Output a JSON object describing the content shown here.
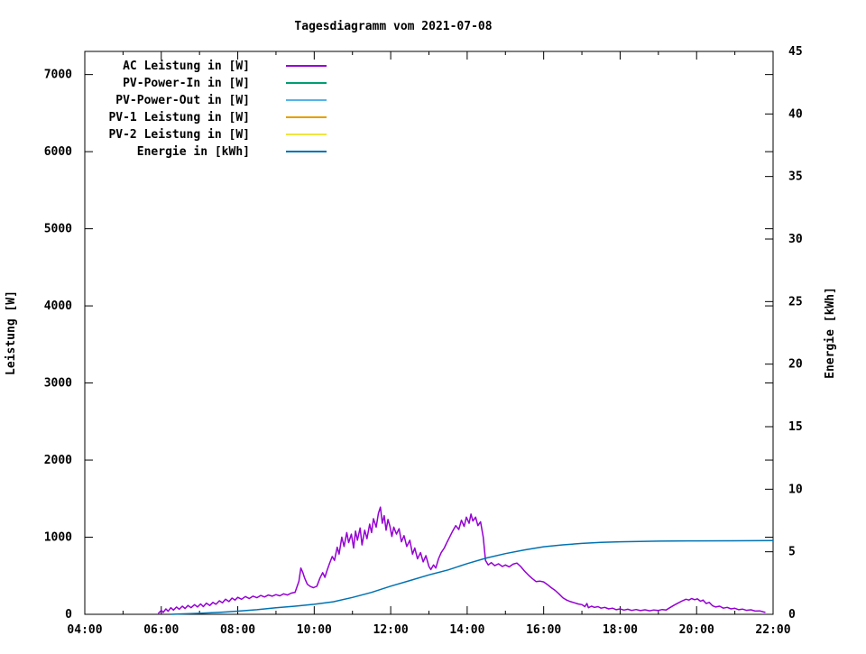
{
  "title": "Tagesdiagramm vom 2021-07-08",
  "colors": {
    "background": "#ffffff",
    "axis": "#000000",
    "ac": "#9400d3",
    "pv_in": "#009e73",
    "pv_out": "#56b4e9",
    "pv1": "#e69f00",
    "pv2": "#f0e442",
    "energie": "#0072b2"
  },
  "chart_data": {
    "type": "line",
    "title": "Tagesdiagramm vom 2021-07-08",
    "xlabel": "",
    "grid": false,
    "legend_position": "top-left-inside",
    "x_axis": {
      "range_hours": [
        4,
        22
      ],
      "major_ticks": [
        {
          "h": 4,
          "label": "04:00"
        },
        {
          "h": 6,
          "label": "06:00"
        },
        {
          "h": 8,
          "label": "08:00"
        },
        {
          "h": 10,
          "label": "10:00"
        },
        {
          "h": 12,
          "label": "12:00"
        },
        {
          "h": 14,
          "label": "14:00"
        },
        {
          "h": 16,
          "label": "16:00"
        },
        {
          "h": 18,
          "label": "18:00"
        },
        {
          "h": 20,
          "label": "20:00"
        },
        {
          "h": 22,
          "label": "22:00"
        }
      ],
      "minor_tick_hours": [
        5,
        7,
        9,
        11,
        13,
        15,
        17,
        19,
        21
      ]
    },
    "y_axis_left": {
      "label": "Leistung [W]",
      "lim": [
        0,
        7300
      ],
      "ticks": [
        0,
        1000,
        2000,
        3000,
        4000,
        5000,
        6000,
        7000
      ]
    },
    "y_axis_right": {
      "label": "Energie [kWh]",
      "lim": [
        0,
        45
      ],
      "ticks": [
        0,
        5,
        10,
        15,
        20,
        25,
        30,
        35,
        40,
        45
      ]
    },
    "series": [
      {
        "name": "AC Leistung in [W]",
        "color": "#9400d3",
        "axis": "left",
        "points": [
          [
            5.92,
            10
          ],
          [
            6.0,
            50
          ],
          [
            6.05,
            25
          ],
          [
            6.12,
            70
          ],
          [
            6.18,
            40
          ],
          [
            6.25,
            85
          ],
          [
            6.32,
            55
          ],
          [
            6.4,
            95
          ],
          [
            6.47,
            65
          ],
          [
            6.55,
            105
          ],
          [
            6.62,
            75
          ],
          [
            6.7,
            115
          ],
          [
            6.78,
            85
          ],
          [
            6.87,
            125
          ],
          [
            6.95,
            95
          ],
          [
            7.03,
            135
          ],
          [
            7.1,
            100
          ],
          [
            7.18,
            145
          ],
          [
            7.27,
            115
          ],
          [
            7.35,
            155
          ],
          [
            7.43,
            130
          ],
          [
            7.52,
            175
          ],
          [
            7.6,
            150
          ],
          [
            7.68,
            195
          ],
          [
            7.77,
            165
          ],
          [
            7.85,
            210
          ],
          [
            7.93,
            185
          ],
          [
            8.0,
            220
          ],
          [
            8.1,
            195
          ],
          [
            8.2,
            230
          ],
          [
            8.3,
            205
          ],
          [
            8.4,
            235
          ],
          [
            8.5,
            215
          ],
          [
            8.6,
            245
          ],
          [
            8.7,
            225
          ],
          [
            8.8,
            250
          ],
          [
            8.9,
            235
          ],
          [
            9.0,
            255
          ],
          [
            9.1,
            240
          ],
          [
            9.2,
            265
          ],
          [
            9.3,
            250
          ],
          [
            9.4,
            275
          ],
          [
            9.5,
            285
          ],
          [
            9.6,
            430
          ],
          [
            9.65,
            600
          ],
          [
            9.7,
            545
          ],
          [
            9.75,
            470
          ],
          [
            9.82,
            390
          ],
          [
            9.9,
            360
          ],
          [
            9.98,
            345
          ],
          [
            10.07,
            365
          ],
          [
            10.15,
            470
          ],
          [
            10.22,
            540
          ],
          [
            10.28,
            480
          ],
          [
            10.33,
            560
          ],
          [
            10.4,
            660
          ],
          [
            10.47,
            750
          ],
          [
            10.53,
            700
          ],
          [
            10.6,
            870
          ],
          [
            10.65,
            780
          ],
          [
            10.72,
            1000
          ],
          [
            10.78,
            880
          ],
          [
            10.85,
            1060
          ],
          [
            10.9,
            930
          ],
          [
            10.97,
            1040
          ],
          [
            11.03,
            860
          ],
          [
            11.08,
            1080
          ],
          [
            11.13,
            960
          ],
          [
            11.2,
            1120
          ],
          [
            11.25,
            900
          ],
          [
            11.32,
            1090
          ],
          [
            11.38,
            980
          ],
          [
            11.45,
            1170
          ],
          [
            11.5,
            1060
          ],
          [
            11.55,
            1240
          ],
          [
            11.62,
            1130
          ],
          [
            11.68,
            1310
          ],
          [
            11.73,
            1390
          ],
          [
            11.78,
            1180
          ],
          [
            11.83,
            1280
          ],
          [
            11.88,
            1090
          ],
          [
            11.93,
            1230
          ],
          [
            11.98,
            1140
          ],
          [
            12.03,
            1010
          ],
          [
            12.08,
            1130
          ],
          [
            12.15,
            1040
          ],
          [
            12.22,
            1110
          ],
          [
            12.28,
            940
          ],
          [
            12.35,
            1020
          ],
          [
            12.42,
            880
          ],
          [
            12.5,
            960
          ],
          [
            12.57,
            780
          ],
          [
            12.63,
            860
          ],
          [
            12.7,
            720
          ],
          [
            12.78,
            800
          ],
          [
            12.85,
            680
          ],
          [
            12.92,
            760
          ],
          [
            13.0,
            620
          ],
          [
            13.05,
            580
          ],
          [
            13.12,
            640
          ],
          [
            13.18,
            600
          ],
          [
            13.25,
            720
          ],
          [
            13.32,
            800
          ],
          [
            13.4,
            860
          ],
          [
            13.48,
            940
          ],
          [
            13.55,
            1010
          ],
          [
            13.62,
            1080
          ],
          [
            13.7,
            1150
          ],
          [
            13.78,
            1100
          ],
          [
            13.85,
            1220
          ],
          [
            13.92,
            1140
          ],
          [
            13.98,
            1260
          ],
          [
            14.05,
            1180
          ],
          [
            14.1,
            1300
          ],
          [
            14.15,
            1210
          ],
          [
            14.22,
            1260
          ],
          [
            14.28,
            1150
          ],
          [
            14.35,
            1200
          ],
          [
            14.42,
            1000
          ],
          [
            14.48,
            700
          ],
          [
            14.55,
            640
          ],
          [
            14.63,
            670
          ],
          [
            14.72,
            630
          ],
          [
            14.82,
            655
          ],
          [
            14.92,
            620
          ],
          [
            15.0,
            640
          ],
          [
            15.1,
            615
          ],
          [
            15.2,
            650
          ],
          [
            15.3,
            665
          ],
          [
            15.4,
            620
          ],
          [
            15.5,
            560
          ],
          [
            15.6,
            510
          ],
          [
            15.7,
            465
          ],
          [
            15.8,
            425
          ],
          [
            15.9,
            430
          ],
          [
            16.0,
            420
          ],
          [
            16.1,
            385
          ],
          [
            16.2,
            345
          ],
          [
            16.3,
            310
          ],
          [
            16.4,
            265
          ],
          [
            16.5,
            215
          ],
          [
            16.6,
            185
          ],
          [
            16.7,
            165
          ],
          [
            16.8,
            150
          ],
          [
            16.9,
            135
          ],
          [
            17.0,
            125
          ],
          [
            17.08,
            100
          ],
          [
            17.13,
            140
          ],
          [
            17.17,
            85
          ],
          [
            17.25,
            105
          ],
          [
            17.33,
            90
          ],
          [
            17.42,
            100
          ],
          [
            17.5,
            80
          ],
          [
            17.6,
            90
          ],
          [
            17.7,
            70
          ],
          [
            17.8,
            80
          ],
          [
            17.9,
            60
          ],
          [
            18.0,
            70
          ],
          [
            18.1,
            55
          ],
          [
            18.2,
            65
          ],
          [
            18.3,
            50
          ],
          [
            18.42,
            62
          ],
          [
            18.53,
            48
          ],
          [
            18.65,
            58
          ],
          [
            18.77,
            46
          ],
          [
            18.88,
            56
          ],
          [
            19.0,
            50
          ],
          [
            19.1,
            62
          ],
          [
            19.2,
            55
          ],
          [
            19.3,
            85
          ],
          [
            19.42,
            120
          ],
          [
            19.53,
            150
          ],
          [
            19.63,
            175
          ],
          [
            19.72,
            195
          ],
          [
            19.8,
            185
          ],
          [
            19.87,
            205
          ],
          [
            19.95,
            190
          ],
          [
            20.02,
            200
          ],
          [
            20.1,
            170
          ],
          [
            20.17,
            185
          ],
          [
            20.25,
            140
          ],
          [
            20.33,
            155
          ],
          [
            20.42,
            110
          ],
          [
            20.5,
            95
          ],
          [
            20.6,
            105
          ],
          [
            20.7,
            80
          ],
          [
            20.8,
            90
          ],
          [
            20.9,
            70
          ],
          [
            21.0,
            78
          ],
          [
            21.1,
            60
          ],
          [
            21.2,
            68
          ],
          [
            21.3,
            52
          ],
          [
            21.42,
            58
          ],
          [
            21.53,
            42
          ],
          [
            21.65,
            45
          ],
          [
            21.75,
            30
          ],
          [
            21.8,
            25
          ]
        ]
      },
      {
        "name": "PV-Power-In in [W]",
        "color": "#009e73",
        "axis": "left",
        "points": []
      },
      {
        "name": "PV-Power-Out in [W]",
        "color": "#56b4e9",
        "axis": "left",
        "points": []
      },
      {
        "name": "PV-1 Leistung in [W]",
        "color": "#e69f00",
        "axis": "left",
        "points": []
      },
      {
        "name": "PV-2 Leistung in [W]",
        "color": "#f0e442",
        "axis": "left",
        "points": []
      },
      {
        "name": "Energie in [kWh]",
        "color": "#0072b2",
        "axis": "right",
        "points": [
          [
            6.25,
            0
          ],
          [
            7.0,
            0.08
          ],
          [
            7.5,
            0.15
          ],
          [
            8.0,
            0.25
          ],
          [
            8.5,
            0.37
          ],
          [
            9.0,
            0.52
          ],
          [
            9.5,
            0.65
          ],
          [
            10.0,
            0.8
          ],
          [
            10.5,
            1.0
          ],
          [
            11.0,
            1.35
          ],
          [
            11.5,
            1.75
          ],
          [
            12.0,
            2.25
          ],
          [
            12.5,
            2.7
          ],
          [
            13.0,
            3.15
          ],
          [
            13.5,
            3.55
          ],
          [
            14.0,
            4.05
          ],
          [
            14.5,
            4.5
          ],
          [
            15.0,
            4.85
          ],
          [
            15.5,
            5.15
          ],
          [
            16.0,
            5.4
          ],
          [
            16.5,
            5.55
          ],
          [
            17.0,
            5.67
          ],
          [
            17.5,
            5.75
          ],
          [
            18.0,
            5.8
          ],
          [
            18.5,
            5.83
          ],
          [
            19.0,
            5.85
          ],
          [
            20.0,
            5.87
          ],
          [
            21.0,
            5.88
          ],
          [
            22.0,
            5.89
          ]
        ]
      }
    ]
  }
}
